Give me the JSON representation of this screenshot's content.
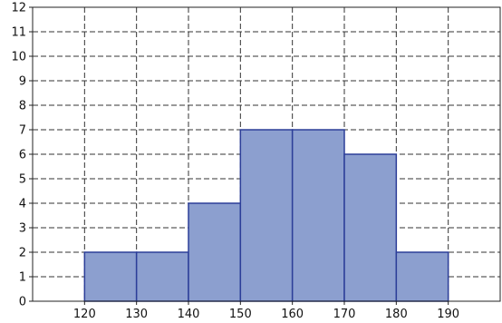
{
  "chart_data": {
    "type": "bar",
    "bin_edges": [
      120,
      130,
      140,
      150,
      160,
      170,
      180,
      190
    ],
    "values": [
      2,
      2,
      4,
      7,
      7,
      6,
      2
    ],
    "xlim": [
      110,
      200
    ],
    "ylim": [
      0,
      12
    ],
    "xticks": [
      "120",
      "130",
      "140",
      "150",
      "160",
      "170",
      "180",
      "190"
    ],
    "yticks": [
      "0",
      "1",
      "2",
      "3",
      "4",
      "5",
      "6",
      "7",
      "8",
      "9",
      "10",
      "11",
      "12"
    ],
    "grid": true,
    "colors": {
      "bar_fill": "#8c9fcf",
      "bar_edge": "#2c3e99",
      "grid": "#333333",
      "axis": "#222222"
    }
  }
}
